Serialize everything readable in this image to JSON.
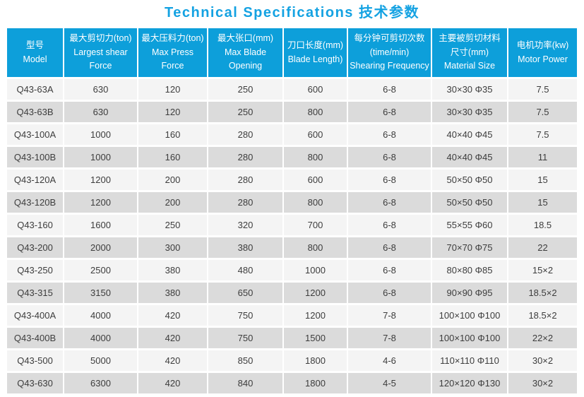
{
  "title": "Technical Specifications 技术参数",
  "colors": {
    "title_text": "#14a2e2",
    "header_bg": "#0d9fda",
    "header_text": "#ffffff",
    "row_light": "#f4f4f4",
    "row_dark": "#dbdbdb",
    "cell_text": "#3d3d3d",
    "page_bg": "#ffffff"
  },
  "table": {
    "headers": [
      {
        "key": "model",
        "lines": [
          "型号",
          "Model"
        ]
      },
      {
        "key": "largest-shear-force",
        "lines": [
          "最大剪切力(ton)",
          "Largest shear Force"
        ]
      },
      {
        "key": "max-press-force",
        "lines": [
          "最大压料力(ton)",
          "Max Press Force"
        ]
      },
      {
        "key": "max-blade-opening",
        "lines": [
          "最大张口(mm)",
          "Max Blade Opening"
        ]
      },
      {
        "key": "blade-length",
        "lines": [
          "刀口长度(mm)",
          "Blade Length)"
        ]
      },
      {
        "key": "shearing-frequency",
        "lines": [
          "每分钟可剪切次数",
          "(time/min)",
          "Shearing Frequency"
        ]
      },
      {
        "key": "material-size",
        "lines": [
          "主要被剪切材料",
          "尺寸(mm)",
          "Material Size"
        ]
      },
      {
        "key": "motor-power",
        "lines": [
          "电机功率(kw)",
          "Motor Power"
        ]
      }
    ],
    "rows": [
      [
        "Q43-63A",
        "630",
        "120",
        "250",
        "600",
        "6-8",
        "30×30 Φ35",
        "7.5"
      ],
      [
        "Q43-63B",
        "630",
        "120",
        "250",
        "800",
        "6-8",
        "30×30 Φ35",
        "7.5"
      ],
      [
        "Q43-100A",
        "1000",
        "160",
        "280",
        "600",
        "6-8",
        "40×40 Φ45",
        "7.5"
      ],
      [
        "Q43-100B",
        "1000",
        "160",
        "280",
        "800",
        "6-8",
        "40×40 Φ45",
        "11"
      ],
      [
        "Q43-120A",
        "1200",
        "200",
        "280",
        "600",
        "6-8",
        "50×50 Φ50",
        "15"
      ],
      [
        "Q43-120B",
        "1200",
        "200",
        "280",
        "800",
        "6-8",
        "50×50 Φ50",
        "15"
      ],
      [
        "Q43-160",
        "1600",
        "250",
        "320",
        "700",
        "6-8",
        "55×55 Φ60",
        "18.5"
      ],
      [
        "Q43-200",
        "2000",
        "300",
        "380",
        "800",
        "6-8",
        "70×70 Φ75",
        "22"
      ],
      [
        "Q43-250",
        "2500",
        "380",
        "480",
        "1000",
        "6-8",
        "80×80 Φ85",
        "15×2"
      ],
      [
        "Q43-315",
        "3150",
        "380",
        "650",
        "1200",
        "6-8",
        "90×90 Φ95",
        "18.5×2"
      ],
      [
        "Q43-400A",
        "4000",
        "420",
        "750",
        "1200",
        "7-8",
        "100×100 Φ100",
        "18.5×2"
      ],
      [
        "Q43-400B",
        "4000",
        "420",
        "750",
        "1500",
        "7-8",
        "100×100 Φ100",
        "22×2"
      ],
      [
        "Q43-500",
        "5000",
        "420",
        "850",
        "1800",
        "4-6",
        "110×110 Φ110",
        "30×2"
      ],
      [
        "Q43-630",
        "6300",
        "420",
        "840",
        "1800",
        "4-5",
        "120×120 Φ130",
        "30×2"
      ]
    ]
  }
}
